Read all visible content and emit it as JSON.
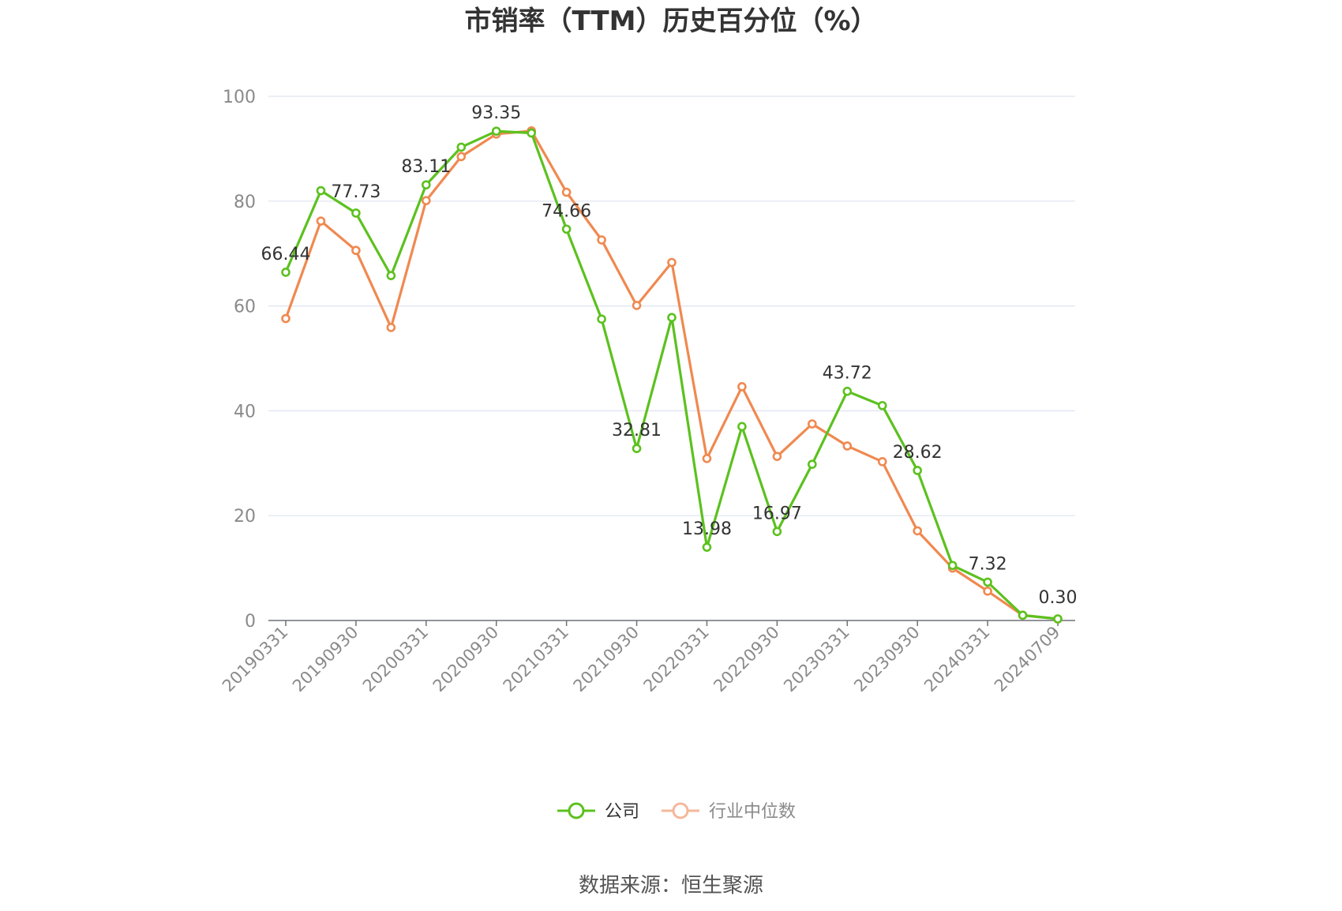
{
  "chart_data": {
    "type": "line",
    "title": "市销率（TTM）历史百分位（%）",
    "ylim": [
      0,
      100
    ],
    "yticks": [
      0,
      20,
      40,
      60,
      80,
      100
    ],
    "x_tick_labels": [
      "20190331",
      "20190930",
      "20200331",
      "20200930",
      "20210331",
      "20210930",
      "20220331",
      "20220930",
      "20230331",
      "20230930",
      "20240331",
      "20240709"
    ],
    "grid": true,
    "legend_position": "bottom",
    "series": [
      {
        "name": "公司",
        "color": "#5cc11f",
        "values": [
          66.44,
          82.0,
          77.73,
          65.8,
          83.11,
          90.3,
          93.35,
          93.0,
          74.66,
          57.5,
          32.81,
          57.8,
          13.98,
          37.0,
          16.97,
          29.8,
          43.72,
          41.0,
          28.62,
          10.5,
          7.32,
          1.0,
          0.3
        ],
        "labeled_values": [
          {
            "index": 0,
            "text": "66.44"
          },
          {
            "index": 2,
            "text": "77.73"
          },
          {
            "index": 4,
            "text": "83.11"
          },
          {
            "index": 6,
            "text": "93.35"
          },
          {
            "index": 8,
            "text": "74.66"
          },
          {
            "index": 10,
            "text": "32.81"
          },
          {
            "index": 12,
            "text": "13.98"
          },
          {
            "index": 14,
            "text": "16.97"
          },
          {
            "index": 16,
            "text": "43.72"
          },
          {
            "index": 18,
            "text": "28.62"
          },
          {
            "index": 20,
            "text": "7.32"
          },
          {
            "index": 22,
            "text": "0.30"
          }
        ]
      },
      {
        "name": "行业中位数",
        "color": "#f08950",
        "values": [
          57.6,
          76.2,
          70.6,
          55.9,
          80.1,
          88.5,
          92.8,
          93.4,
          81.7,
          72.6,
          60.1,
          68.3,
          30.9,
          44.6,
          31.3,
          37.5,
          33.3,
          30.3,
          17.1,
          10.0,
          5.6,
          1.0,
          0.3
        ]
      }
    ]
  },
  "legend": {
    "items": [
      "公司",
      "行业中位数"
    ]
  },
  "source_text": "数据来源：恒生聚源"
}
